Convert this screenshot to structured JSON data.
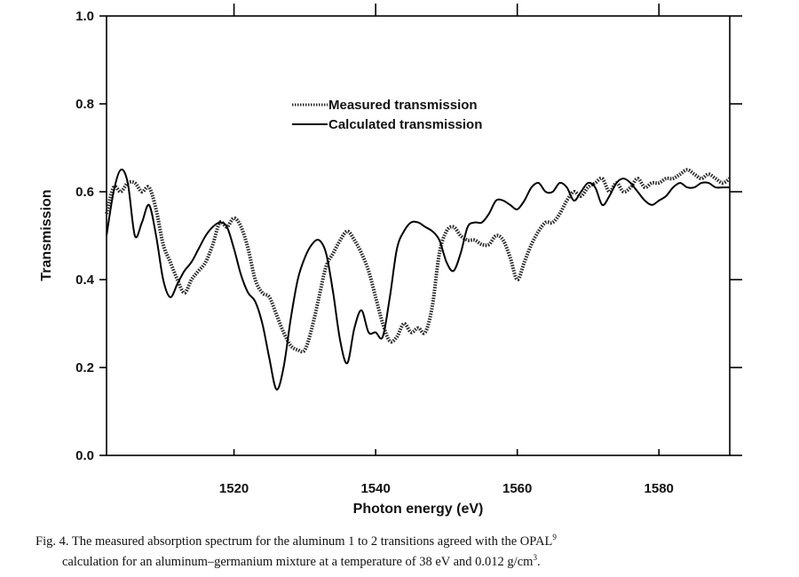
{
  "caption": {
    "line1_pre": "Fig. 4. The measured absorption spectrum for the aluminum 1 to 2 transitions agreed with the OPAL",
    "line1_sup": "9",
    "line2_pre": "calculation for an aluminum–germanium mixture at a temperature of 38 eV and 0.012 g/cm",
    "line2_sup": "3",
    "line2_post": "."
  },
  "chart_data": {
    "type": "line",
    "title": "",
    "xlabel": "Photon energy (eV)",
    "ylabel": "Transmission",
    "xlim": [
      1502,
      1590
    ],
    "ylim": [
      0.0,
      1.0
    ],
    "xticks": [
      1520,
      1540,
      1560,
      1580
    ],
    "yticks": [
      "0.0",
      "0.2",
      "0.4",
      "0.6",
      "0.8",
      "1.0"
    ],
    "legend": {
      "placement": "upper-center"
    },
    "series": [
      {
        "name": "Measured transmission",
        "style": "dotted",
        "color": "#2a2a2a",
        "x": [
          1502,
          1503,
          1504,
          1505,
          1506,
          1507,
          1508,
          1509,
          1510,
          1511,
          1512,
          1513,
          1514,
          1515,
          1516,
          1517,
          1518,
          1519,
          1520,
          1521,
          1522,
          1523,
          1524,
          1525,
          1526,
          1527,
          1528,
          1529,
          1530,
          1531,
          1532,
          1533,
          1534,
          1535,
          1536,
          1537,
          1538,
          1539,
          1540,
          1541,
          1542,
          1543,
          1544,
          1545,
          1546,
          1547,
          1548,
          1549,
          1550,
          1551,
          1552,
          1553,
          1554,
          1555,
          1556,
          1557,
          1558,
          1559,
          1560,
          1561,
          1562,
          1563,
          1564,
          1565,
          1566,
          1567,
          1568,
          1569,
          1570,
          1571,
          1572,
          1573,
          1574,
          1575,
          1576,
          1577,
          1578,
          1579,
          1580,
          1581,
          1582,
          1583,
          1584,
          1585,
          1586,
          1587,
          1588,
          1589,
          1590
        ],
        "y": [
          0.55,
          0.61,
          0.6,
          0.62,
          0.62,
          0.6,
          0.61,
          0.56,
          0.48,
          0.44,
          0.4,
          0.37,
          0.4,
          0.42,
          0.44,
          0.48,
          0.53,
          0.52,
          0.54,
          0.52,
          0.47,
          0.4,
          0.37,
          0.36,
          0.32,
          0.28,
          0.25,
          0.24,
          0.24,
          0.29,
          0.36,
          0.43,
          0.46,
          0.49,
          0.51,
          0.49,
          0.46,
          0.42,
          0.36,
          0.3,
          0.26,
          0.27,
          0.3,
          0.28,
          0.29,
          0.28,
          0.34,
          0.46,
          0.51,
          0.52,
          0.5,
          0.49,
          0.49,
          0.48,
          0.48,
          0.5,
          0.49,
          0.45,
          0.4,
          0.44,
          0.48,
          0.51,
          0.53,
          0.53,
          0.55,
          0.58,
          0.6,
          0.59,
          0.61,
          0.62,
          0.63,
          0.6,
          0.62,
          0.6,
          0.61,
          0.63,
          0.61,
          0.62,
          0.62,
          0.63,
          0.63,
          0.64,
          0.65,
          0.64,
          0.63,
          0.64,
          0.63,
          0.62,
          0.63
        ]
      },
      {
        "name": "Calculated transmission",
        "style": "solid",
        "color": "#000000",
        "x": [
          1502,
          1503,
          1504,
          1505,
          1506,
          1507,
          1508,
          1509,
          1510,
          1511,
          1512,
          1513,
          1514,
          1515,
          1516,
          1517,
          1518,
          1519,
          1520,
          1521,
          1522,
          1523,
          1524,
          1525,
          1526,
          1527,
          1528,
          1529,
          1530,
          1531,
          1532,
          1533,
          1534,
          1535,
          1536,
          1537,
          1538,
          1539,
          1540,
          1541,
          1542,
          1543,
          1544,
          1545,
          1546,
          1547,
          1548,
          1549,
          1550,
          1551,
          1552,
          1553,
          1554,
          1555,
          1556,
          1557,
          1558,
          1559,
          1560,
          1561,
          1562,
          1563,
          1564,
          1565,
          1566,
          1567,
          1568,
          1569,
          1570,
          1571,
          1572,
          1573,
          1574,
          1575,
          1576,
          1577,
          1578,
          1579,
          1580,
          1581,
          1582,
          1583,
          1584,
          1585,
          1586,
          1587,
          1588,
          1589,
          1590
        ],
        "y": [
          0.5,
          0.6,
          0.65,
          0.62,
          0.5,
          0.53,
          0.57,
          0.5,
          0.4,
          0.36,
          0.39,
          0.42,
          0.44,
          0.47,
          0.5,
          0.52,
          0.53,
          0.52,
          0.47,
          0.41,
          0.37,
          0.35,
          0.3,
          0.22,
          0.15,
          0.2,
          0.31,
          0.4,
          0.45,
          0.48,
          0.49,
          0.46,
          0.37,
          0.26,
          0.21,
          0.29,
          0.33,
          0.28,
          0.28,
          0.27,
          0.36,
          0.47,
          0.51,
          0.53,
          0.53,
          0.52,
          0.51,
          0.49,
          0.44,
          0.42,
          0.46,
          0.52,
          0.53,
          0.53,
          0.55,
          0.58,
          0.58,
          0.57,
          0.56,
          0.58,
          0.61,
          0.62,
          0.6,
          0.6,
          0.62,
          0.61,
          0.58,
          0.6,
          0.62,
          0.61,
          0.57,
          0.59,
          0.62,
          0.63,
          0.62,
          0.6,
          0.58,
          0.57,
          0.58,
          0.59,
          0.61,
          0.62,
          0.61,
          0.61,
          0.62,
          0.62,
          0.61,
          0.61,
          0.61
        ]
      }
    ]
  }
}
